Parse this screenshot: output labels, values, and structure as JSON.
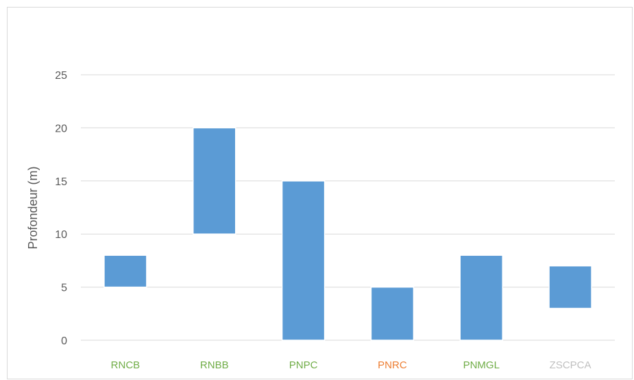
{
  "chart_data": {
    "type": "bar",
    "subtype": "floating-range",
    "ylabel": "Profondeur (m)",
    "ylim": [
      0,
      25
    ],
    "yticks": [
      0,
      5,
      10,
      15,
      20,
      25
    ],
    "grid": true,
    "bar_color": "#5b9bd5",
    "categories": [
      "RNCB",
      "RNBB",
      "PNPC",
      "PNRC",
      "PNMGL",
      "ZSCPCA"
    ],
    "category_colors": [
      "#70ad47",
      "#70ad47",
      "#70ad47",
      "#ed7d31",
      "#70ad47",
      "#bfbfbf"
    ],
    "ranges": [
      [
        5,
        8
      ],
      [
        10,
        20
      ],
      [
        0,
        15
      ],
      [
        0,
        5
      ],
      [
        0,
        8
      ],
      [
        3,
        7
      ]
    ]
  }
}
